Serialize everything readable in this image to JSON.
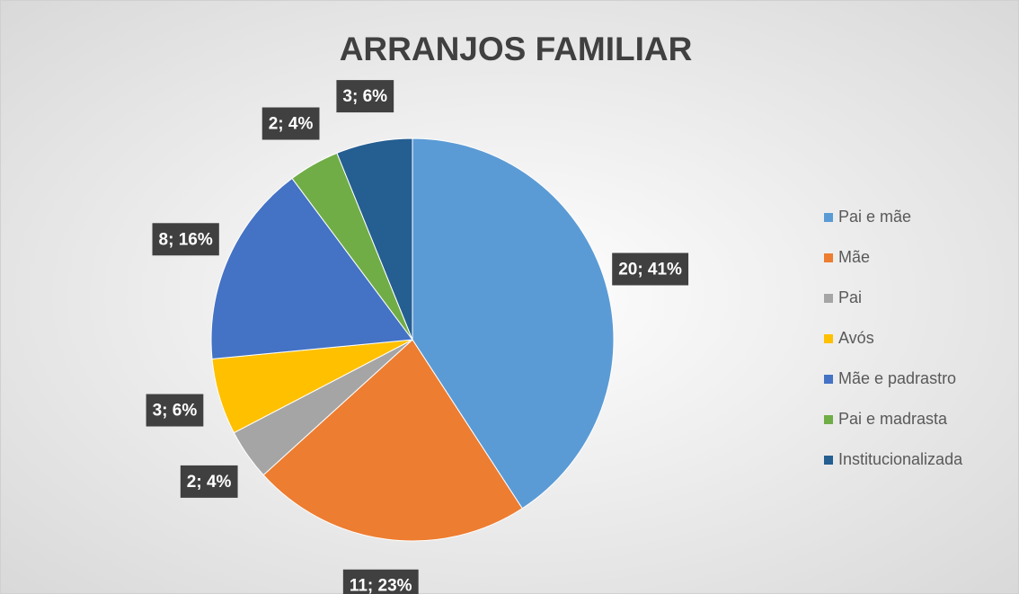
{
  "chart_data": {
    "type": "pie",
    "title": "ARRANJOS FAMILIAR",
    "categories": [
      "Pai e mãe",
      "Mãe",
      "Pai",
      "Avós",
      "Mãe e padrastro",
      "Pai e madrasta",
      "Institucionalizada"
    ],
    "values": [
      20,
      11,
      2,
      3,
      8,
      2,
      3
    ],
    "value_labels": [
      "20; 41%",
      "11; 23%",
      "2; 4%",
      "3; 6%",
      "8; 16%",
      "2; 4%",
      "3; 6%"
    ],
    "colors": [
      "#5b9bd5",
      "#ed7d31",
      "#a5a5a5",
      "#ffc000",
      "#4472c4",
      "#70ad47",
      "#255e91"
    ],
    "legend": "right"
  }
}
